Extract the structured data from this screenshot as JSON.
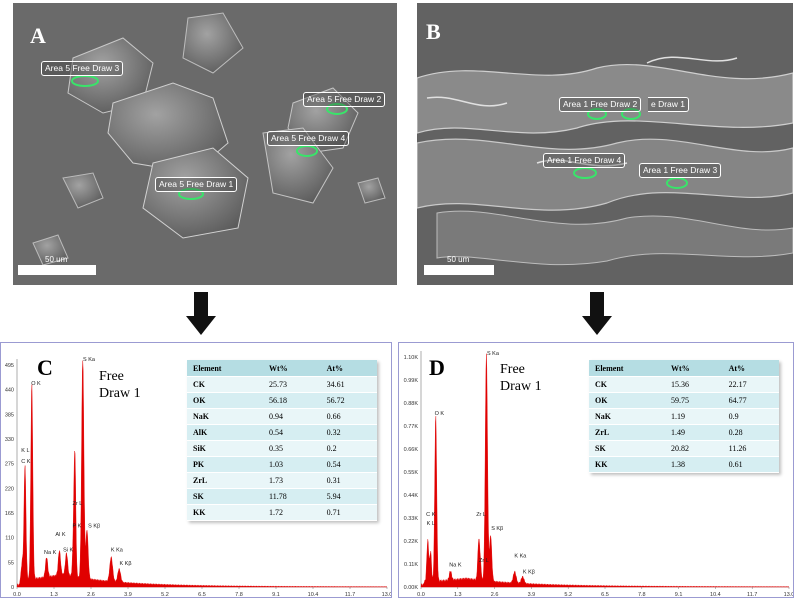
{
  "panels": {
    "A": {
      "letter": "A",
      "areas": [
        "Area 5 Free Draw 3",
        "Area 5 Free Draw 2",
        "Area 5 Free Draw 4",
        "Area 5 Free Draw 1"
      ],
      "scale": "50 um"
    },
    "B": {
      "letter": "B",
      "areas": [
        "Area 1 Free Draw 2",
        "e Draw 1",
        "Area 1 Free Draw 4",
        "Area 1 Free Draw 3"
      ],
      "scale": "50 um"
    }
  },
  "spectra": {
    "C": {
      "letter": "C",
      "label_line1": "Free",
      "label_line2": "Draw 1",
      "y_ticks": [
        "495",
        "440",
        "385",
        "330",
        "275",
        "220",
        "165",
        "110",
        "55",
        "0"
      ],
      "x_ticks": [
        "0.0",
        "1.3",
        "2.6",
        "3.9",
        "5.2",
        "6.5",
        "7.8",
        "9.1",
        "10.4",
        "11.7",
        "13.0"
      ],
      "peak_labels": [
        "C K",
        "K L",
        "O K",
        "Na K",
        "Al K",
        "Si K",
        "P K",
        "Zr L",
        "S Ka",
        "S Kβ",
        "K Ka",
        "K Kβ"
      ],
      "table": {
        "headers": [
          "Element",
          "Wt%",
          "At%"
        ],
        "rows": [
          [
            "CK",
            "25.73",
            "34.61"
          ],
          [
            "OK",
            "56.18",
            "56.72"
          ],
          [
            "NaK",
            "0.94",
            "0.66"
          ],
          [
            "AlK",
            "0.54",
            "0.32"
          ],
          [
            "SiK",
            "0.35",
            "0.2"
          ],
          [
            "PK",
            "1.03",
            "0.54"
          ],
          [
            "ZrL",
            "1.73",
            "0.31"
          ],
          [
            "SK",
            "11.78",
            "5.94"
          ],
          [
            "KK",
            "1.72",
            "0.71"
          ]
        ]
      }
    },
    "D": {
      "letter": "D",
      "label_line1": "Free",
      "label_line2": "Draw 1",
      "y_ticks": [
        "1.10K",
        "0.99K",
        "0.88K",
        "0.77K",
        "0.66K",
        "0.55K",
        "0.44K",
        "0.33K",
        "0.22K",
        "0.11K",
        "0.00K"
      ],
      "x_ticks": [
        "0.0",
        "1.3",
        "2.6",
        "3.9",
        "5.2",
        "6.5",
        "7.8",
        "9.1",
        "10.4",
        "11.7",
        "13.0"
      ],
      "peak_labels": [
        "C K",
        "K L",
        "O K",
        "Na K",
        "Zr L",
        "S Ka",
        "S Kβ",
        "K Ka",
        "K Kβ",
        "Zr L"
      ],
      "table": {
        "headers": [
          "Element",
          "Wt%",
          "At%"
        ],
        "rows": [
          [
            "CK",
            "15.36",
            "22.17"
          ],
          [
            "OK",
            "59.75",
            "64.77"
          ],
          [
            "NaK",
            "1.19",
            "0.9"
          ],
          [
            "ZrL",
            "1.49",
            "0.28"
          ],
          [
            "SK",
            "20.82",
            "11.26"
          ],
          [
            "KK",
            "1.38",
            "0.61"
          ]
        ]
      }
    }
  },
  "colors": {
    "sem_bg": "#6c6c6c",
    "marker_green": "#39e46a",
    "spectrum_red": "#e00000",
    "frame_purple": "#9b9bd2",
    "table_header": "#b5dde3"
  }
}
